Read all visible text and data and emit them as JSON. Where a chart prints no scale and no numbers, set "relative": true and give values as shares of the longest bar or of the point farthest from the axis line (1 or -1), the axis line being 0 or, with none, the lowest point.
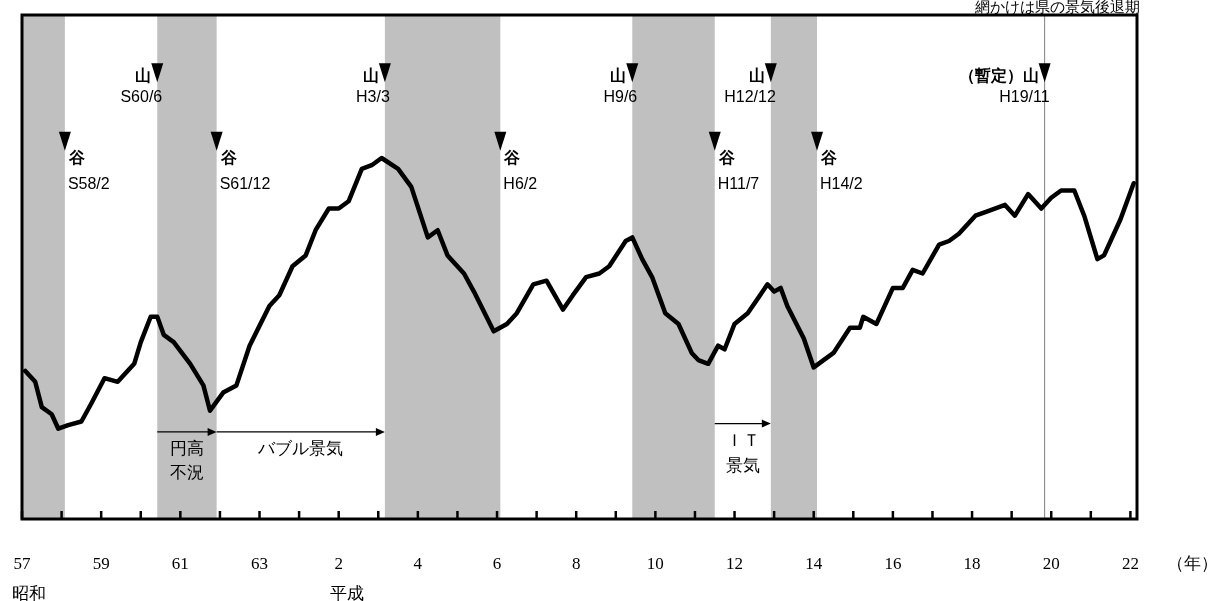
{
  "chart_data": {
    "type": "line",
    "relative": true,
    "color": "#000000",
    "xlabel": "（年）",
    "xlim": [
      "1982-01",
      "2010-03"
    ],
    "xticks": [
      {
        "value": "1982-01",
        "label": "57"
      },
      {
        "value": "1983-01",
        "label": null
      },
      {
        "value": "1984-01",
        "label": "59"
      },
      {
        "value": "1985-01",
        "label": null
      },
      {
        "value": "1986-01",
        "label": "61"
      },
      {
        "value": "1987-01",
        "label": null
      },
      {
        "value": "1988-01",
        "label": "63"
      },
      {
        "value": "1989-01",
        "label": null
      },
      {
        "value": "1990-01",
        "label": "2"
      },
      {
        "value": "1991-01",
        "label": null
      },
      {
        "value": "1992-01",
        "label": "4"
      },
      {
        "value": "1993-01",
        "label": null
      },
      {
        "value": "1994-01",
        "label": "6"
      },
      {
        "value": "1995-01",
        "label": null
      },
      {
        "value": "1996-01",
        "label": "8"
      },
      {
        "value": "1997-01",
        "label": null
      },
      {
        "value": "1998-01",
        "label": "10"
      },
      {
        "value": "1999-01",
        "label": null
      },
      {
        "value": "2000-01",
        "label": "12"
      },
      {
        "value": "2001-01",
        "label": null
      },
      {
        "value": "2002-01",
        "label": "14"
      },
      {
        "value": "2003-01",
        "label": null
      },
      {
        "value": "2004-01",
        "label": "16"
      },
      {
        "value": "2005-01",
        "label": null
      },
      {
        "value": "2006-01",
        "label": "18"
      },
      {
        "value": "2007-01",
        "label": null
      },
      {
        "value": "2008-01",
        "label": "20"
      },
      {
        "value": "2009-01",
        "label": null
      },
      {
        "value": "2010-01",
        "label": "22"
      }
    ],
    "x": [
      "1982-02",
      "1982-05",
      "1982-07",
      "1982-10",
      "1982-12",
      "1983-03",
      "1983-07",
      "1983-10",
      "1984-02",
      "1984-06",
      "1984-11",
      "1985-01",
      "1985-04",
      "1985-06",
      "1985-08",
      "1985-11",
      "1986-04",
      "1986-08",
      "1986-10",
      "1987-02",
      "1987-06",
      "1987-10",
      "1988-04",
      "1988-07",
      "1988-11",
      "1989-03",
      "1989-06",
      "1989-10",
      "1990-01",
      "1990-04",
      "1990-08",
      "1990-11",
      "1991-02",
      "1991-07",
      "1991-11",
      "1992-04",
      "1992-07",
      "1992-10",
      "1993-03",
      "1993-06",
      "1993-12",
      "1994-04",
      "1994-07",
      "1994-12",
      "1995-04",
      "1995-09",
      "1995-12",
      "1996-04",
      "1996-08",
      "1996-11",
      "1997-04",
      "1997-06",
      "1997-09",
      "1997-12",
      "1998-04",
      "1998-08",
      "1998-12",
      "1999-02",
      "1999-05",
      "1999-08",
      "1999-10",
      "2000-01",
      "2000-05",
      "2000-11",
      "2001-01",
      "2001-03",
      "2001-05",
      "2001-10",
      "2002-01",
      "2002-04",
      "2002-07",
      "2002-12",
      "2003-03",
      "2003-04",
      "2003-08",
      "2004-01",
      "2004-04",
      "2004-07",
      "2004-10",
      "2005-03",
      "2005-06",
      "2005-09",
      "2006-02",
      "2006-05",
      "2006-11",
      "2007-02",
      "2007-06",
      "2007-10",
      "2008-01",
      "2008-04",
      "2008-08",
      "2008-11",
      "2009-03",
      "2009-05",
      "2009-10",
      "2010-02"
    ],
    "values": [
      0.41,
      0.38,
      0.31,
      0.29,
      0.25,
      0.26,
      0.27,
      0.32,
      0.39,
      0.38,
      0.43,
      0.49,
      0.56,
      0.56,
      0.51,
      0.49,
      0.43,
      0.37,
      0.3,
      0.35,
      0.37,
      0.48,
      0.59,
      0.62,
      0.7,
      0.73,
      0.8,
      0.86,
      0.86,
      0.88,
      0.97,
      0.98,
      1.0,
      0.97,
      0.92,
      0.78,
      0.8,
      0.73,
      0.68,
      0.63,
      0.52,
      0.54,
      0.57,
      0.65,
      0.66,
      0.58,
      0.62,
      0.67,
      0.68,
      0.7,
      0.77,
      0.78,
      0.72,
      0.67,
      0.57,
      0.54,
      0.46,
      0.44,
      0.43,
      0.48,
      0.47,
      0.54,
      0.57,
      0.65,
      0.63,
      0.64,
      0.59,
      0.5,
      0.42,
      0.44,
      0.46,
      0.53,
      0.53,
      0.56,
      0.54,
      0.64,
      0.64,
      0.69,
      0.68,
      0.76,
      0.77,
      0.79,
      0.84,
      0.85,
      0.87,
      0.84,
      0.9,
      0.86,
      0.89,
      0.91,
      0.91,
      0.84,
      0.72,
      0.73,
      0.83,
      0.93
    ],
    "bands": [
      {
        "axis": "x",
        "from": "1982-01",
        "to": "1983-02",
        "color": "#c0c0c0"
      },
      {
        "axis": "x",
        "from": "1985-06",
        "to": "1986-12",
        "color": "#c0c0c0"
      },
      {
        "axis": "x",
        "from": "1991-03",
        "to": "1994-02",
        "color": "#c0c0c0"
      },
      {
        "axis": "x",
        "from": "1997-06",
        "to": "1999-07",
        "color": "#c0c0c0"
      },
      {
        "axis": "x",
        "from": "2000-12",
        "to": "2002-02",
        "color": "#c0c0c0"
      }
    ],
    "ref_lines": [
      {
        "axis": "x",
        "value": "2007-11",
        "color": "#808080"
      }
    ],
    "annotations": [
      "網かけは県の景気後退期",
      "昭和",
      "平成",
      {
        "text": "谷\nS58/2",
        "x": "1983-02",
        "y": 1.02
      },
      {
        "text": "山\nS60/6",
        "x": "1985-06",
        "y": 1.21
      },
      {
        "text": "谷\nS61/12",
        "x": "1986-12",
        "y": 1.02
      },
      {
        "text": "山\nH3/3",
        "x": "1991-03",
        "y": 1.21
      },
      {
        "text": "谷\nH6/2",
        "x": "1994-02",
        "y": 1.02
      },
      {
        "text": "山\nH9/6",
        "x": "1997-06",
        "y": 1.21
      },
      {
        "text": "谷\nH11/7",
        "x": "1999-07",
        "y": 1.02
      },
      {
        "text": "山\nH12/12",
        "x": "2000-12",
        "y": 1.21
      },
      {
        "text": "谷\nH14/2",
        "x": "2002-02",
        "y": 1.02
      },
      {
        "text": "（暫定）山\nH19/11",
        "x": "2007-11",
        "y": 1.21
      },
      {
        "text": "円高",
        "x": "1985-06",
        "y": 0.197
      },
      {
        "text": "不況",
        "x": "1985-06",
        "y": 0.13
      },
      {
        "text": "バブル景気",
        "x": "1986-12",
        "y": 0.197
      },
      {
        "text": "ＩＴ",
        "x": "1999-07",
        "y": 0.22
      },
      {
        "text": "景気",
        "x": "1999-07",
        "y": 0.15
      }
    ]
  }
}
